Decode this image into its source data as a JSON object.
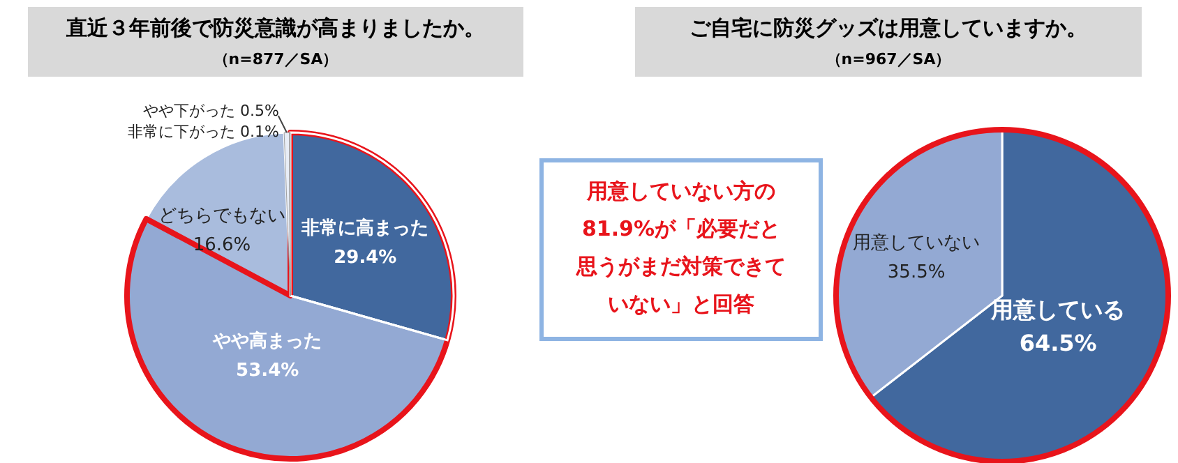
{
  "chart_data": [
    {
      "type": "pie",
      "title": "直近３年前後で防災意識が高まりましたか。",
      "subtitle": "（n=877／SA）",
      "categories": [
        "非常に高まった",
        "やや高まった",
        "どちらでもない",
        "やや下がった",
        "非常に下がった"
      ],
      "values": [
        29.4,
        53.4,
        16.6,
        0.5,
        0.1
      ],
      "value_labels": [
        "29.4%",
        "53.4%",
        "16.6%",
        "0.5%",
        "0.1%"
      ],
      "colors": [
        "#41689e",
        "#93a9d3",
        "#a9bcdd",
        "#e8edf6",
        "#f4f6fa"
      ]
    },
    {
      "type": "pie",
      "title": "ご自宅に防災グッズは用意していますか。",
      "subtitle": "（n=967／SA）",
      "categories": [
        "用意している",
        "用意していない"
      ],
      "values": [
        64.5,
        35.5
      ],
      "value_labels": [
        "64.5%",
        "35.5%"
      ],
      "colors": [
        "#41689e",
        "#93a9d3"
      ],
      "annotations": [
        "用意していない方の81.9%が「必要だと思うがまだ対策できていない」と回答"
      ]
    }
  ]
}
